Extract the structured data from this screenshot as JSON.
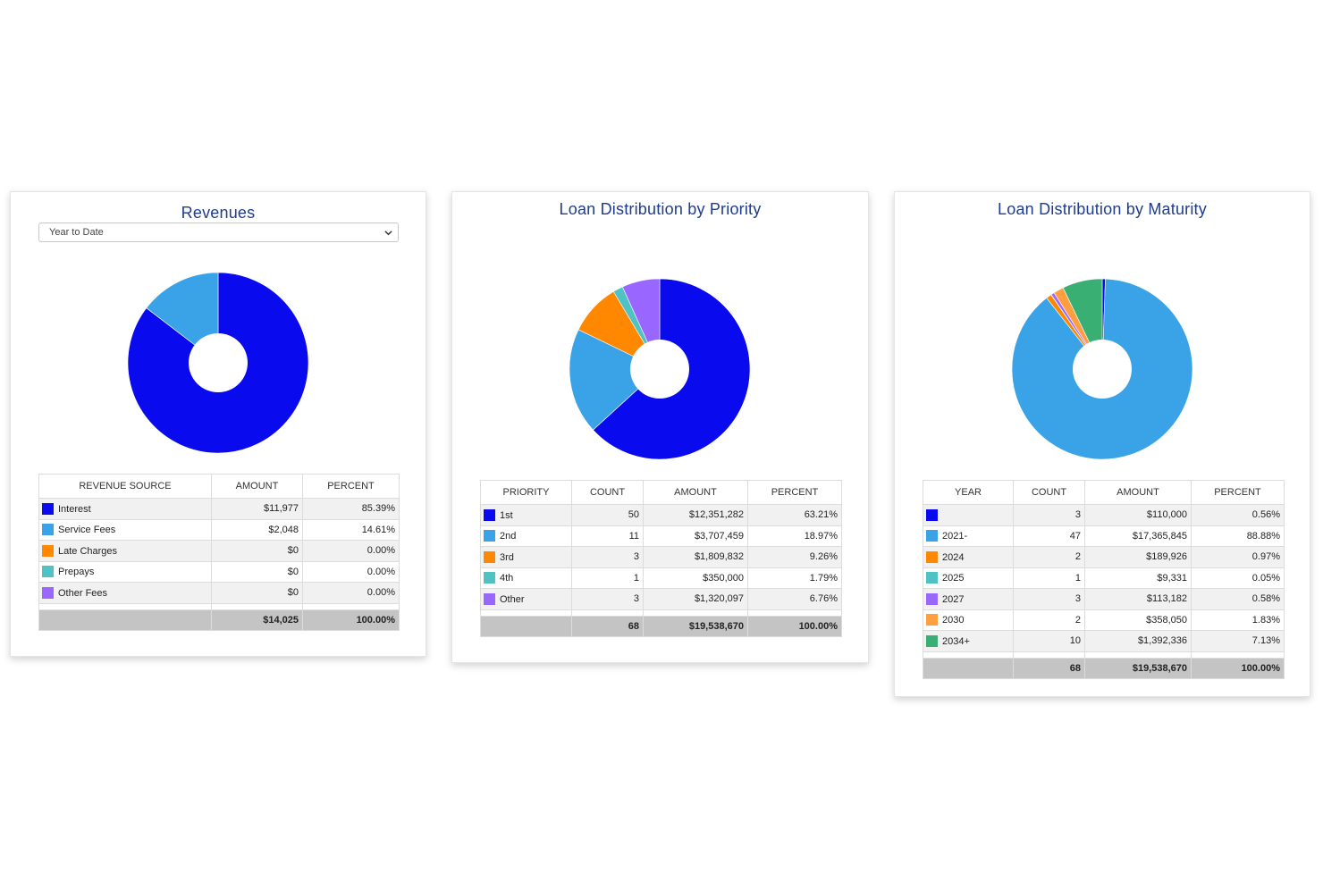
{
  "colors": {
    "blue": "#0a0aee",
    "lightblue": "#3aa3e8",
    "orange": "#ff8800",
    "teal": "#4fc2c3",
    "purple": "#9966ff",
    "lightorange": "#ff9f40",
    "green": "#3aaf74"
  },
  "revenues": {
    "title": "Revenues",
    "period": "Year to Date",
    "headers": [
      "REVENUE SOURCE",
      "AMOUNT",
      "PERCENT"
    ],
    "rows": [
      {
        "label": "Interest",
        "amount": "$11,977",
        "percent": "85.39%",
        "color": "#0a0aee"
      },
      {
        "label": "Service Fees",
        "amount": "$2,048",
        "percent": "14.61%",
        "color": "#3aa3e8"
      },
      {
        "label": "Late Charges",
        "amount": "$0",
        "percent": "0.00%",
        "color": "#ff8800"
      },
      {
        "label": "Prepays",
        "amount": "$0",
        "percent": "0.00%",
        "color": "#4fc2c3"
      },
      {
        "label": "Other Fees",
        "amount": "$0",
        "percent": "0.00%",
        "color": "#9966ff"
      }
    ],
    "total": {
      "amount": "$14,025",
      "percent": "100.00%"
    }
  },
  "priority": {
    "title": "Loan Distribution by Priority",
    "headers": [
      "PRIORITY",
      "COUNT",
      "AMOUNT",
      "PERCENT"
    ],
    "rows": [
      {
        "label": "1st",
        "count": "50",
        "amount": "$12,351,282",
        "percent": "63.21%",
        "color": "#0a0aee"
      },
      {
        "label": "2nd",
        "count": "11",
        "amount": "$3,707,459",
        "percent": "18.97%",
        "color": "#3aa3e8"
      },
      {
        "label": "3rd",
        "count": "3",
        "amount": "$1,809,832",
        "percent": "9.26%",
        "color": "#ff8800"
      },
      {
        "label": "4th",
        "count": "1",
        "amount": "$350,000",
        "percent": "1.79%",
        "color": "#4fc2c3"
      },
      {
        "label": "Other",
        "count": "3",
        "amount": "$1,320,097",
        "percent": "6.76%",
        "color": "#9966ff"
      }
    ],
    "total": {
      "count": "68",
      "amount": "$19,538,670",
      "percent": "100.00%"
    }
  },
  "maturity": {
    "title": "Loan Distribution by Maturity",
    "headers": [
      "YEAR",
      "COUNT",
      "AMOUNT",
      "PERCENT"
    ],
    "rows": [
      {
        "label": "",
        "count": "3",
        "amount": "$110,000",
        "percent": "0.56%",
        "color": "#0a0aee"
      },
      {
        "label": "2021-",
        "count": "47",
        "amount": "$17,365,845",
        "percent": "88.88%",
        "color": "#3aa3e8"
      },
      {
        "label": "2024",
        "count": "2",
        "amount": "$189,926",
        "percent": "0.97%",
        "color": "#ff8800"
      },
      {
        "label": "2025",
        "count": "1",
        "amount": "$9,331",
        "percent": "0.05%",
        "color": "#4fc2c3"
      },
      {
        "label": "2027",
        "count": "3",
        "amount": "$113,182",
        "percent": "0.58%",
        "color": "#9966ff"
      },
      {
        "label": "2030",
        "count": "2",
        "amount": "$358,050",
        "percent": "1.83%",
        "color": "#ff9f40"
      },
      {
        "label": "2034+",
        "count": "10",
        "amount": "$1,392,336",
        "percent": "7.13%",
        "color": "#3aaf74"
      }
    ],
    "total": {
      "count": "68",
      "amount": "$19,538,670",
      "percent": "100.00%"
    }
  },
  "chart_data": [
    {
      "type": "pie",
      "title": "Revenues",
      "categories": [
        "Interest",
        "Service Fees",
        "Late Charges",
        "Prepays",
        "Other Fees"
      ],
      "values": [
        85.39,
        14.61,
        0.0,
        0.0,
        0.0
      ],
      "colors": [
        "#0a0aee",
        "#3aa3e8",
        "#ff8800",
        "#4fc2c3",
        "#9966ff"
      ]
    },
    {
      "type": "pie",
      "title": "Loan Distribution by Priority",
      "categories": [
        "1st",
        "2nd",
        "3rd",
        "4th",
        "Other"
      ],
      "values": [
        63.21,
        18.97,
        9.26,
        1.79,
        6.76
      ],
      "colors": [
        "#0a0aee",
        "#3aa3e8",
        "#ff8800",
        "#4fc2c3",
        "#9966ff"
      ]
    },
    {
      "type": "pie",
      "title": "Loan Distribution by Maturity",
      "categories": [
        "",
        "2021-",
        "2024",
        "2025",
        "2027",
        "2030",
        "2034+"
      ],
      "values": [
        0.56,
        88.88,
        0.97,
        0.05,
        0.58,
        1.83,
        7.13
      ],
      "colors": [
        "#0a0aee",
        "#3aa3e8",
        "#ff8800",
        "#4fc2c3",
        "#9966ff",
        "#ff9f40",
        "#3aaf74"
      ]
    }
  ]
}
